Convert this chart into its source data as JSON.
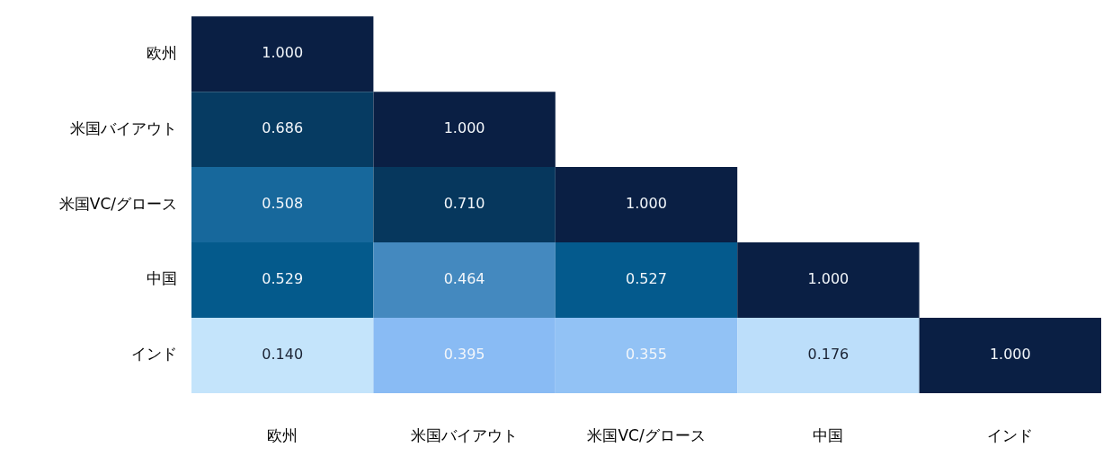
{
  "chart_data": {
    "type": "heatmap",
    "categories": [
      "欧州",
      "米国バイアウト",
      "米国VC/グロース",
      "中国",
      "インド"
    ],
    "y_categories": [
      "欧州",
      "米国バイアウト",
      "米国VC/グロース",
      "中国",
      "インド"
    ],
    "cells": [
      [
        1.0,
        null,
        null,
        null,
        null
      ],
      [
        0.686,
        1.0,
        null,
        null,
        null
      ],
      [
        0.508,
        0.71,
        1.0,
        null,
        null
      ],
      [
        0.529,
        0.464,
        0.527,
        1.0,
        null
      ],
      [
        0.14,
        0.395,
        0.355,
        0.176,
        1.0
      ]
    ],
    "cell_labels": [
      [
        "1.000",
        null,
        null,
        null,
        null
      ],
      [
        "0.686",
        "1.000",
        null,
        null,
        null
      ],
      [
        "0.508",
        "0.710",
        "1.000",
        null,
        null
      ],
      [
        "0.529",
        "0.464",
        "0.527",
        "1.000",
        null
      ],
      [
        "0.140",
        "0.395",
        "0.355",
        "0.176",
        "1.000"
      ]
    ]
  }
}
